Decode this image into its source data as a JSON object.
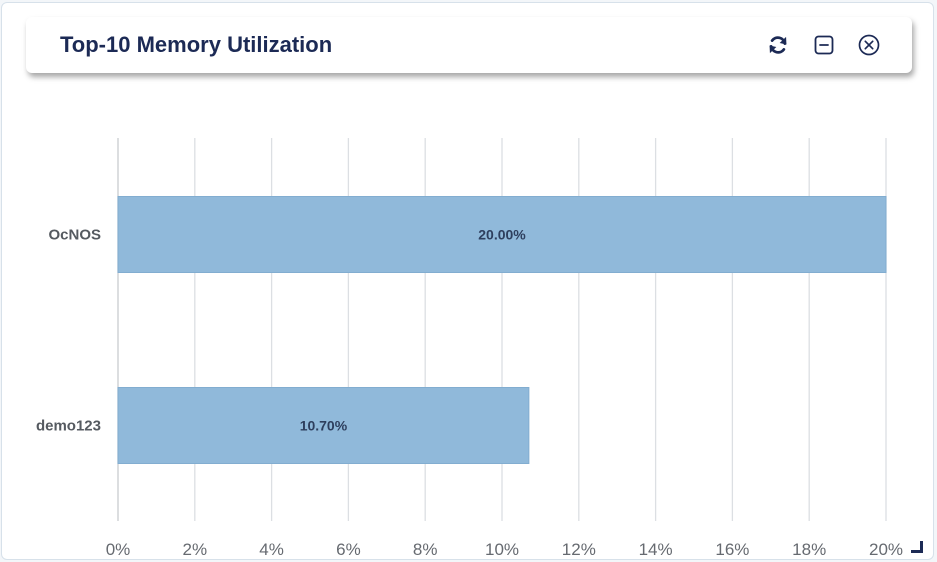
{
  "widget": {
    "title": "Top-10 Memory Utilization",
    "icons": {
      "refresh": "refresh-icon",
      "minimize": "minimize-icon",
      "close": "close-icon",
      "resize": "resize-icon"
    }
  },
  "colors": {
    "title": "#1c2a55",
    "bar": "#90b9da",
    "bar_stroke": "#82add0",
    "grid": "#dcdfe3",
    "axis": "#c9ccd0"
  },
  "chart_data": {
    "type": "bar",
    "orientation": "horizontal",
    "categories": [
      "OcNOS",
      "demo123"
    ],
    "values": [
      20.0,
      10.7
    ],
    "value_labels": [
      "20.00%",
      "10.70%"
    ],
    "xlim": [
      0,
      20
    ],
    "x_ticks": [
      0,
      2,
      4,
      6,
      8,
      10,
      12,
      14,
      16,
      18,
      20
    ],
    "x_tick_labels": [
      "0%",
      "2%",
      "4%",
      "6%",
      "8%",
      "10%",
      "12%",
      "14%",
      "16%",
      "18%",
      "20%"
    ],
    "grid": true,
    "legend": "none"
  }
}
